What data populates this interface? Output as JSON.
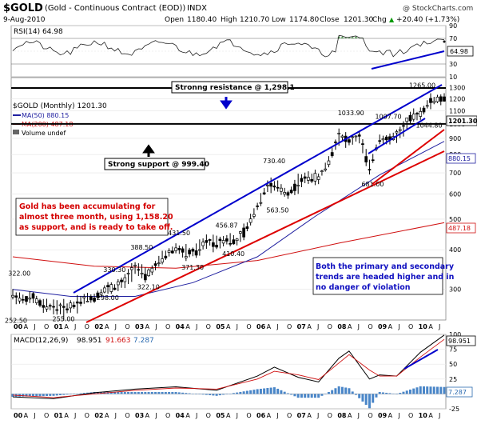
{
  "header": {
    "symbol": "$GOLD",
    "description": "(Gold - Continuous Contract (EOD))",
    "exchange": "INDX",
    "watermark": "@ StockCharts.com",
    "date": "9-Aug-2010",
    "open_label": "Open",
    "open": "1180.40",
    "high_label": "High",
    "high": "1210.70",
    "low_label": "Low",
    "low": "1174.80",
    "close_label": "Close",
    "close": "1201.30",
    "chg_label": "Chg",
    "chg": "+20.40 (+1.73%)",
    "chg_arrow": "▲"
  },
  "rsi_panel": {
    "label": "RSI(14) 64.98",
    "value_badge": "64.98",
    "ticks": [
      "90",
      "70",
      "50",
      "30",
      "10"
    ]
  },
  "price_panel": {
    "label": "$GOLD (Monthly) 1201.30",
    "ma50_label": "MA(50) 880.15",
    "ma200_label": "MA(200) 487.18",
    "volume_label": "Volume undef",
    "close_badge": "1201.30",
    "ma50_badge": "880.15",
    "ma200_badge": "487.18",
    "y_ticks": [
      "1300",
      "1200",
      "1100",
      "1000",
      "900",
      "800",
      "700",
      "600",
      "500",
      "400",
      "300"
    ],
    "peak_labels": [
      "322.00",
      "252.50",
      "255.00",
      "330.30",
      "298.00",
      "388.50",
      "322.10",
      "431.50",
      "371.30",
      "456.87",
      "410.40",
      "730.40",
      "563.50",
      "1033.90",
      "681.00",
      "1007.70",
      "1265.00",
      "1044.80"
    ],
    "x_labels": [
      "00",
      "A",
      "J",
      "O",
      "01",
      "A",
      "J",
      "O",
      "02",
      "A",
      "J",
      "O",
      "03",
      "A",
      "J",
      "O",
      "04",
      "A",
      "J",
      "O",
      "05",
      "A",
      "J",
      "O",
      "06",
      "A",
      "J",
      "O",
      "07",
      "A",
      "J",
      "O",
      "08",
      "A",
      "J",
      "O",
      "09",
      "A",
      "J",
      "O",
      "10",
      "A",
      "J"
    ]
  },
  "annotations": {
    "resistance": "Stronng resistance @ 1,298.1",
    "support": "Strong support @ 999.40",
    "left_note": [
      "Gold has been accumulating for",
      "almost three month, using 1,158.20",
      "as support, and is ready to take off."
    ],
    "right_note": [
      "Both the primary and secondary",
      "trends are headed higher and in",
      "no danger of violation"
    ]
  },
  "macd_panel": {
    "label_prefix": "MACD(12,26,9)",
    "macd": "98.951",
    "signal": "91.663",
    "hist": "7.287",
    "macd_badge": "98.951",
    "hist_badge": "7.287",
    "ticks": [
      "100",
      "75",
      "50",
      "25",
      "0",
      "-25"
    ]
  },
  "colors": {
    "price_bars": "#000000",
    "ma50": "#2020a0",
    "ma200": "#d01010",
    "trend_blue": "#0000cc",
    "trend_red": "#dd0000",
    "macd_line": "#000000",
    "signal_line": "#d01010",
    "histogram": "#4a86c8",
    "rsi_fill": "#3a8a3a"
  },
  "chart_data": {
    "type": "ohlc",
    "title": "$GOLD (Gold - Continuous Contract (EOD)) INDX",
    "period": "Monthly",
    "y_scale": "log",
    "ylim": [
      240,
      1400
    ],
    "x_range": [
      "2000-01",
      "2010-08"
    ],
    "swing_points": [
      {
        "date": "2000-01",
        "value": 252.5,
        "label": "252.50"
      },
      {
        "date": "2000-02",
        "value": 322.0,
        "label": "322.00"
      },
      {
        "date": "2001-03",
        "value": 255.0,
        "label": "255.00"
      },
      {
        "date": "2002-06",
        "value": 330.3,
        "label": "330.30"
      },
      {
        "date": "2002-04",
        "value": 298.0,
        "label": "298.00"
      },
      {
        "date": "2003-02",
        "value": 388.5,
        "label": "388.50"
      },
      {
        "date": "2003-04",
        "value": 322.1,
        "label": "322.10"
      },
      {
        "date": "2004-01",
        "value": 431.5,
        "label": "431.50"
      },
      {
        "date": "2004-05",
        "value": 371.3,
        "label": "371.30"
      },
      {
        "date": "2005-03",
        "value": 456.87,
        "label": "456.87"
      },
      {
        "date": "2005-05",
        "value": 410.4,
        "label": "410.40"
      },
      {
        "date": "2006-05",
        "value": 730.4,
        "label": "730.40"
      },
      {
        "date": "2006-06",
        "value": 563.5,
        "label": "563.50"
      },
      {
        "date": "2008-03",
        "value": 1033.9,
        "label": "1033.90"
      },
      {
        "date": "2008-10",
        "value": 681.0,
        "label": "681.00"
      },
      {
        "date": "2009-02",
        "value": 1007.7,
        "label": "1007.70"
      },
      {
        "date": "2009-12",
        "value": 1265.0,
        "label": "1265.00"
      },
      {
        "date": "2010-02",
        "value": 1044.8,
        "label": "1044.80"
      }
    ],
    "series": [
      {
        "name": "$GOLD",
        "x": [
          "2000-01",
          "2000-04",
          "2000-07",
          "2000-10",
          "2001-01",
          "2001-04",
          "2001-07",
          "2001-10",
          "2002-01",
          "2002-04",
          "2002-07",
          "2002-10",
          "2003-01",
          "2003-04",
          "2003-07",
          "2003-10",
          "2004-01",
          "2004-04",
          "2004-07",
          "2004-10",
          "2005-01",
          "2005-04",
          "2005-07",
          "2005-10",
          "2006-01",
          "2006-04",
          "2006-07",
          "2006-10",
          "2007-01",
          "2007-04",
          "2007-07",
          "2007-10",
          "2008-01",
          "2008-04",
          "2008-07",
          "2008-10",
          "2009-01",
          "2009-04",
          "2009-07",
          "2009-10",
          "2010-01",
          "2010-04",
          "2010-08"
        ],
        "values": [
          288,
          278,
          282,
          265,
          265,
          260,
          268,
          280,
          282,
          300,
          305,
          318,
          355,
          330,
          355,
          385,
          405,
          390,
          395,
          425,
          422,
          432,
          425,
          470,
          550,
          640,
          630,
          600,
          650,
          680,
          670,
          760,
          920,
          880,
          910,
          720,
          900,
          890,
          940,
          1040,
          1080,
          1180,
          1201
        ]
      },
      {
        "name": "MA(50)",
        "x": [
          "2000-01",
          "2001-06",
          "2003-01",
          "2004-06",
          "2006-01",
          "2007-06",
          "2009-01",
          "2010-08"
        ],
        "values": [
          300,
          285,
          285,
          315,
          380,
          510,
          690,
          880.15
        ]
      },
      {
        "name": "MA(200)",
        "x": [
          "2000-01",
          "2002-01",
          "2004-01",
          "2006-01",
          "2008-01",
          "2010-08"
        ],
        "values": [
          380,
          355,
          350,
          370,
          420,
          487.18
        ]
      }
    ],
    "reference_lines": [
      {
        "name": "Stronng resistance @ 1,298.1",
        "value": 1298.1
      },
      {
        "name": "Strong support @ 999.40",
        "value": 999.4
      }
    ],
    "rsi": {
      "label": "RSI(14)",
      "last": 64.98,
      "ylim": [
        10,
        90
      ]
    },
    "macd": {
      "label": "MACD(12,26,9)",
      "macd": 98.951,
      "signal": 91.663,
      "histogram": 7.287,
      "ylim": [
        -25,
        100
      ],
      "x": [
        "2000-01",
        "2001-01",
        "2002-01",
        "2003-01",
        "2004-01",
        "2005-01",
        "2006-01",
        "2006-06",
        "2007-01",
        "2007-07",
        "2008-01",
        "2008-04",
        "2008-10",
        "2009-01",
        "2009-06",
        "2010-01",
        "2010-08"
      ],
      "macd_values": [
        -5,
        -8,
        2,
        8,
        12,
        6,
        30,
        45,
        28,
        20,
        60,
        72,
        25,
        32,
        30,
        70,
        98.951
      ],
      "signal_values": [
        -2,
        -6,
        0,
        6,
        10,
        8,
        25,
        38,
        32,
        24,
        52,
        66,
        40,
        30,
        30,
        62,
        91.663
      ]
    }
  }
}
